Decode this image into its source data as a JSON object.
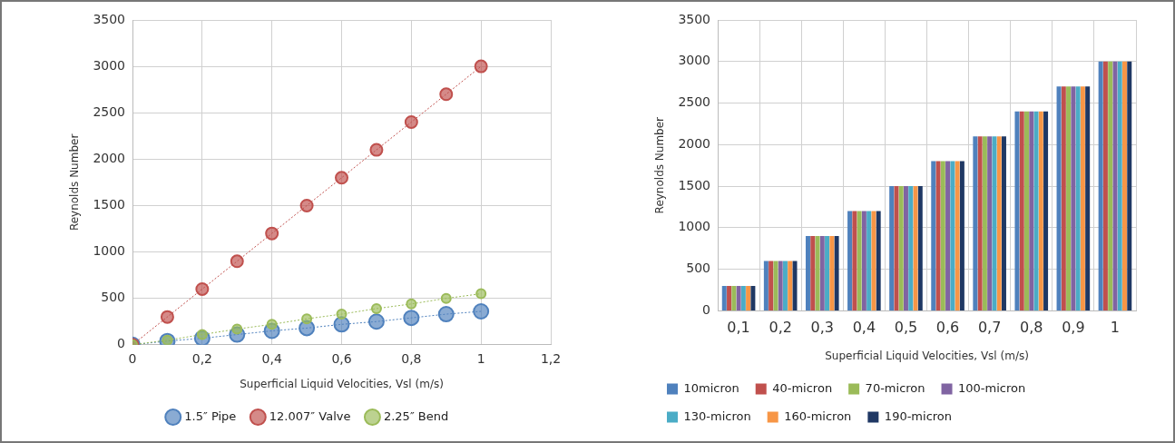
{
  "chart_data": [
    {
      "type": "line",
      "xlabel": "Superficial Liquid Velocities, Vsl (m/s)",
      "ylabel": "Reynolds Number",
      "x": [
        0,
        0.1,
        0.2,
        0.3,
        0.4,
        0.5,
        0.6,
        0.7,
        0.8,
        0.9,
        1
      ],
      "series": [
        {
          "name": "1.5″ Pipe",
          "color": "#4f81bd",
          "values": [
            0,
            40,
            70,
            110,
            150,
            180,
            220,
            250,
            290,
            330,
            360
          ]
        },
        {
          "name": "12.007″ Valve",
          "color": "#c0504d",
          "values": [
            0,
            300,
            600,
            900,
            1200,
            1500,
            1800,
            2100,
            2400,
            2700,
            3000
          ]
        },
        {
          "name": "2.25″ Bend",
          "color": "#9bbb59",
          "values": [
            0,
            50,
            110,
            170,
            220,
            280,
            330,
            390,
            440,
            500,
            550
          ]
        }
      ],
      "xlim": [
        0,
        1.2
      ],
      "xticks": [
        0,
        {
          "value": 0.2,
          "label": "0,2"
        },
        {
          "value": 0.4,
          "label": "0,4"
        },
        {
          "value": 0.6,
          "label": "0,6"
        },
        {
          "value": 0.8,
          "label": "0,8"
        },
        1,
        {
          "value": 1.2,
          "label": "1,2"
        }
      ],
      "ylim": [
        0,
        3500
      ],
      "yticks": [
        0,
        500,
        1000,
        1500,
        2000,
        2500,
        3000,
        3500
      ],
      "grid": true,
      "legend": "bottom",
      "marker": "circle",
      "line_style": "dotted"
    },
    {
      "type": "bar",
      "xlabel": "Superficial Liquid Velocities, Vsl (m/s)",
      "ylabel": "Reynolds Number",
      "categories": [
        "0,1",
        "0,2",
        "0,3",
        "0,4",
        "0,5",
        "0,6",
        "0,7",
        "0,8",
        "0,9",
        "1"
      ],
      "series": [
        {
          "name": "10micron",
          "color": "#4f81bd",
          "values": [
            300,
            600,
            900,
            1200,
            1500,
            1800,
            2100,
            2400,
            2700,
            3000
          ]
        },
        {
          "name": "40-micron",
          "color": "#c0504d",
          "values": [
            300,
            600,
            900,
            1200,
            1500,
            1800,
            2100,
            2400,
            2700,
            3000
          ]
        },
        {
          "name": "70-micron",
          "color": "#9bbb59",
          "values": [
            300,
            600,
            900,
            1200,
            1500,
            1800,
            2100,
            2400,
            2700,
            3000
          ]
        },
        {
          "name": "100-micron",
          "color": "#8064a2",
          "values": [
            300,
            600,
            900,
            1200,
            1500,
            1800,
            2100,
            2400,
            2700,
            3000
          ]
        },
        {
          "name": "130-micron",
          "color": "#4bacc6",
          "values": [
            300,
            600,
            900,
            1200,
            1500,
            1800,
            2100,
            2400,
            2700,
            3000
          ]
        },
        {
          "name": "160-micron",
          "color": "#f79646",
          "values": [
            300,
            600,
            900,
            1200,
            1500,
            1800,
            2100,
            2400,
            2700,
            3000
          ]
        },
        {
          "name": "190-micron",
          "color": "#1f3864",
          "values": [
            300,
            600,
            900,
            1200,
            1500,
            1800,
            2100,
            2400,
            2700,
            3000
          ]
        }
      ],
      "ylim": [
        0,
        3500
      ],
      "yticks": [
        0,
        500,
        1000,
        1500,
        2000,
        2500,
        3000,
        3500
      ],
      "grid": true,
      "legend": "bottom"
    }
  ]
}
